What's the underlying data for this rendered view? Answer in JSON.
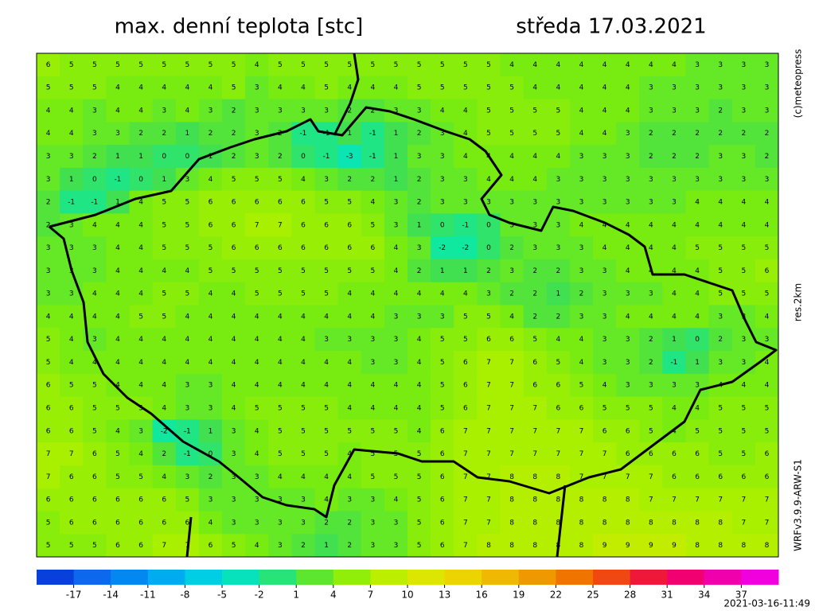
{
  "header": {
    "title": "max. denní teplota [stc]",
    "date": "středa 17.03.2021"
  },
  "side": {
    "copyright": "(c)meteopress",
    "resolution": "res.2km",
    "model": "WRFv3.9.9-ARW-S1"
  },
  "footer": {
    "timestamp": "2021-03-16-11:49"
  },
  "colorbar": {
    "lim": [
      -20,
      40
    ],
    "ticks": [
      -17,
      -14,
      -11,
      -8,
      -5,
      -2,
      1,
      4,
      7,
      10,
      13,
      16,
      19,
      22,
      25,
      28,
      31,
      34,
      37
    ],
    "colors": [
      "#0028d0",
      "#1058e8",
      "#0878f0",
      "#0098f0",
      "#00c0f0",
      "#00dcd8",
      "#10e8a0",
      "#40e050",
      "#78ec10",
      "#a8f000",
      "#d0ec00",
      "#e8e000",
      "#f0c800",
      "#f0a800",
      "#f08800",
      "#f06000",
      "#f03020",
      "#f00050",
      "#f00090",
      "#f000c8",
      "#f000f0"
    ]
  },
  "map": {
    "grid": [
      [
        6,
        5,
        5,
        5,
        5,
        5,
        5,
        5,
        5,
        4,
        5,
        5,
        5,
        5,
        5,
        5,
        5,
        5,
        5,
        5,
        4,
        4,
        4,
        4,
        4,
        4,
        4,
        4,
        3,
        3,
        3,
        3
      ],
      [
        5,
        5,
        5,
        4,
        4,
        4,
        4,
        4,
        5,
        3,
        4,
        4,
        5,
        4,
        4,
        4,
        5,
        5,
        5,
        5,
        5,
        4,
        4,
        4,
        4,
        4,
        3,
        3,
        3,
        3,
        3,
        3
      ],
      [
        4,
        4,
        3,
        4,
        4,
        3,
        4,
        3,
        2,
        3,
        3,
        3,
        3,
        2,
        2,
        3,
        3,
        4,
        4,
        5,
        5,
        5,
        5,
        4,
        4,
        4,
        3,
        3,
        3,
        2,
        3,
        3
      ],
      [
        4,
        4,
        3,
        3,
        2,
        2,
        1,
        2,
        2,
        3,
        2,
        -1,
        -1,
        1,
        -1,
        1,
        2,
        3,
        4,
        5,
        5,
        5,
        5,
        4,
        4,
        3,
        2,
        2,
        2,
        2,
        2,
        2
      ],
      [
        3,
        3,
        2,
        1,
        1,
        0,
        0,
        1,
        2,
        3,
        2,
        0,
        -1,
        -3,
        -1,
        1,
        3,
        3,
        4,
        4,
        4,
        4,
        4,
        3,
        3,
        3,
        2,
        2,
        2,
        3,
        3,
        2
      ],
      [
        3,
        1,
        0,
        -1,
        0,
        1,
        3,
        4,
        5,
        5,
        5,
        4,
        3,
        2,
        2,
        1,
        2,
        3,
        3,
        4,
        4,
        4,
        3,
        3,
        3,
        3,
        3,
        3,
        3,
        3,
        3,
        3
      ],
      [
        2,
        -1,
        -1,
        1,
        4,
        5,
        5,
        6,
        6,
        6,
        6,
        6,
        5,
        5,
        4,
        3,
        2,
        3,
        3,
        3,
        3,
        3,
        3,
        3,
        3,
        3,
        3,
        3,
        4,
        4,
        4,
        4
      ],
      [
        2,
        3,
        4,
        4,
        4,
        5,
        5,
        6,
        6,
        7,
        7,
        6,
        6,
        6,
        5,
        3,
        1,
        0,
        -1,
        0,
        3,
        3,
        3,
        4,
        4,
        4,
        4,
        4,
        4,
        4,
        4,
        4
      ],
      [
        3,
        3,
        3,
        4,
        4,
        5,
        5,
        5,
        6,
        6,
        6,
        6,
        6,
        6,
        6,
        4,
        3,
        -2,
        -2,
        0,
        2,
        3,
        3,
        3,
        4,
        4,
        4,
        4,
        5,
        5,
        5,
        5
      ],
      [
        3,
        3,
        3,
        4,
        4,
        4,
        4,
        5,
        5,
        5,
        5,
        5,
        5,
        5,
        5,
        4,
        2,
        1,
        1,
        2,
        3,
        2,
        2,
        3,
        3,
        4,
        4,
        4,
        4,
        5,
        5,
        6
      ],
      [
        3,
        3,
        4,
        4,
        4,
        5,
        5,
        4,
        4,
        5,
        5,
        5,
        5,
        4,
        4,
        4,
        4,
        4,
        4,
        3,
        2,
        2,
        1,
        2,
        3,
        3,
        3,
        4,
        4,
        5,
        5,
        5
      ],
      [
        4,
        4,
        4,
        4,
        5,
        5,
        4,
        4,
        4,
        4,
        4,
        4,
        4,
        4,
        4,
        3,
        3,
        3,
        5,
        5,
        4,
        2,
        2,
        3,
        3,
        4,
        4,
        4,
        4,
        3,
        3,
        4
      ],
      [
        5,
        4,
        3,
        4,
        4,
        4,
        4,
        4,
        4,
        4,
        4,
        4,
        3,
        3,
        3,
        3,
        4,
        5,
        5,
        6,
        6,
        5,
        4,
        4,
        3,
        3,
        2,
        1,
        0,
        2,
        3,
        3
      ],
      [
        5,
        4,
        4,
        4,
        4,
        4,
        4,
        4,
        4,
        4,
        4,
        4,
        4,
        4,
        3,
        3,
        4,
        5,
        6,
        7,
        7,
        6,
        5,
        4,
        3,
        3,
        2,
        -1,
        1,
        3,
        3,
        4
      ],
      [
        6,
        5,
        5,
        4,
        4,
        4,
        3,
        3,
        4,
        4,
        4,
        4,
        4,
        4,
        4,
        4,
        4,
        5,
        6,
        7,
        7,
        6,
        6,
        5,
        4,
        3,
        3,
        3,
        3,
        4,
        4,
        4
      ],
      [
        6,
        6,
        5,
        5,
        5,
        4,
        3,
        3,
        4,
        5,
        5,
        5,
        5,
        4,
        4,
        4,
        4,
        5,
        6,
        7,
        7,
        7,
        6,
        6,
        5,
        5,
        5,
        4,
        4,
        5,
        5,
        5
      ],
      [
        6,
        6,
        5,
        4,
        3,
        -2,
        -1,
        1,
        3,
        4,
        5,
        5,
        5,
        5,
        5,
        5,
        4,
        6,
        7,
        7,
        7,
        7,
        7,
        7,
        6,
        6,
        5,
        4,
        5,
        5,
        5,
        5
      ],
      [
        7,
        7,
        6,
        5,
        4,
        2,
        -1,
        0,
        3,
        4,
        5,
        5,
        5,
        4,
        5,
        5,
        5,
        6,
        7,
        7,
        7,
        7,
        7,
        7,
        7,
        6,
        6,
        6,
        6,
        5,
        5,
        6
      ],
      [
        7,
        6,
        6,
        5,
        5,
        4,
        3,
        2,
        3,
        3,
        4,
        4,
        4,
        4,
        5,
        5,
        5,
        6,
        7,
        7,
        8,
        8,
        8,
        7,
        7,
        7,
        7,
        6,
        6,
        6,
        6,
        6
      ],
      [
        6,
        6,
        6,
        6,
        6,
        6,
        5,
        3,
        3,
        3,
        3,
        3,
        4,
        3,
        3,
        4,
        5,
        6,
        7,
        7,
        8,
        8,
        8,
        8,
        8,
        8,
        7,
        7,
        7,
        7,
        7,
        7
      ],
      [
        5,
        6,
        6,
        6,
        6,
        6,
        6,
        4,
        3,
        3,
        3,
        3,
        2,
        2,
        3,
        3,
        5,
        6,
        7,
        7,
        8,
        8,
        8,
        8,
        8,
        8,
        8,
        8,
        8,
        8,
        7,
        7
      ],
      [
        5,
        5,
        5,
        6,
        6,
        7,
        7,
        6,
        5,
        4,
        3,
        2,
        1,
        2,
        3,
        3,
        5,
        6,
        7,
        8,
        8,
        8,
        8,
        8,
        9,
        9,
        9,
        9,
        8,
        8,
        8,
        8
      ]
    ]
  }
}
